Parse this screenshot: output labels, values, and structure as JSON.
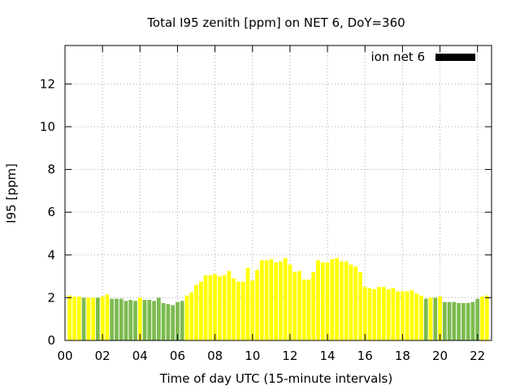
{
  "chart_data": {
    "type": "bar",
    "title": "Total I95 zenith [ppm] on NET 6, DoY=360",
    "xlabel": "Time of day UTC (15-minute intervals)",
    "ylabel": "I95 [ppm]",
    "xlim": [
      0,
      22.75
    ],
    "ylim": [
      0,
      13.8
    ],
    "xticks": [
      "00",
      "02",
      "04",
      "06",
      "08",
      "10",
      "12",
      "14",
      "16",
      "18",
      "20",
      "22"
    ],
    "yticks": [
      "0",
      "2",
      "4",
      "6",
      "8",
      "10",
      "12"
    ],
    "grid": true,
    "legend": {
      "label": "ion net 6",
      "position": "top-right",
      "color": "#000000"
    },
    "colors": {
      "yellow": "#ffff00",
      "green": "#7cbb4e",
      "grid": "#aaaaaa"
    },
    "x": [
      0.25,
      0.5,
      0.75,
      1.0,
      1.25,
      1.5,
      1.75,
      2.0,
      2.25,
      2.5,
      2.75,
      3.0,
      3.25,
      3.5,
      3.75,
      4.0,
      4.25,
      4.5,
      4.75,
      5.0,
      5.25,
      5.5,
      5.75,
      6.0,
      6.25,
      6.5,
      6.75,
      7.0,
      7.25,
      7.5,
      7.75,
      8.0,
      8.25,
      8.5,
      8.75,
      9.0,
      9.25,
      9.5,
      9.75,
      10.0,
      10.25,
      10.5,
      10.75,
      11.0,
      11.25,
      11.5,
      11.75,
      12.0,
      12.25,
      12.5,
      12.75,
      13.0,
      13.25,
      13.5,
      13.75,
      14.0,
      14.25,
      14.5,
      14.75,
      15.0,
      15.25,
      15.5,
      15.75,
      16.0,
      16.25,
      16.5,
      16.75,
      17.0,
      17.25,
      17.5,
      17.75,
      18.0,
      18.25,
      18.5,
      18.75,
      19.0,
      19.25,
      19.5,
      19.75,
      20.0,
      20.25,
      20.5,
      20.75,
      21.0,
      21.25,
      21.5,
      21.75,
      22.0,
      22.25,
      22.5
    ],
    "values": [
      2.1,
      2.05,
      2.05,
      2.0,
      2.0,
      2.0,
      2.0,
      2.05,
      2.15,
      1.95,
      1.95,
      1.95,
      1.85,
      1.9,
      1.85,
      2.0,
      1.9,
      1.9,
      1.85,
      2.0,
      1.75,
      1.7,
      1.65,
      1.8,
      1.85,
      2.1,
      2.25,
      2.6,
      2.75,
      3.05,
      3.05,
      3.1,
      3.0,
      3.05,
      3.25,
      2.9,
      2.75,
      2.75,
      3.4,
      2.8,
      3.3,
      3.75,
      3.75,
      3.8,
      3.65,
      3.7,
      3.85,
      3.55,
      3.2,
      3.25,
      2.85,
      2.85,
      3.2,
      3.75,
      3.65,
      3.65,
      3.8,
      3.85,
      3.7,
      3.7,
      3.55,
      3.45,
      3.2,
      2.5,
      2.45,
      2.4,
      2.5,
      2.5,
      2.4,
      2.45,
      2.3,
      2.3,
      2.3,
      2.35,
      2.2,
      2.1,
      1.95,
      2.0,
      2.0,
      2.05,
      1.8,
      1.8,
      1.8,
      1.75,
      1.75,
      1.75,
      1.8,
      1.95,
      2.05,
      2.1
    ],
    "bar_colors": [
      "yellow",
      "yellow",
      "yellow",
      "green",
      "yellow",
      "yellow",
      "green",
      "yellow",
      "yellow",
      "green",
      "green",
      "green",
      "green",
      "green",
      "green",
      "yellow",
      "green",
      "green",
      "green",
      "green",
      "green",
      "green",
      "green",
      "green",
      "green",
      "yellow",
      "yellow",
      "yellow",
      "yellow",
      "yellow",
      "yellow",
      "yellow",
      "yellow",
      "yellow",
      "yellow",
      "yellow",
      "yellow",
      "yellow",
      "yellow",
      "yellow",
      "yellow",
      "yellow",
      "yellow",
      "yellow",
      "yellow",
      "yellow",
      "yellow",
      "yellow",
      "yellow",
      "yellow",
      "yellow",
      "yellow",
      "yellow",
      "yellow",
      "yellow",
      "yellow",
      "yellow",
      "yellow",
      "yellow",
      "yellow",
      "yellow",
      "yellow",
      "yellow",
      "yellow",
      "yellow",
      "yellow",
      "yellow",
      "yellow",
      "yellow",
      "yellow",
      "yellow",
      "yellow",
      "yellow",
      "yellow",
      "yellow",
      "yellow",
      "green",
      "yellow",
      "green",
      "yellow",
      "green",
      "green",
      "green",
      "green",
      "green",
      "green",
      "green",
      "green",
      "yellow",
      "yellow"
    ]
  }
}
